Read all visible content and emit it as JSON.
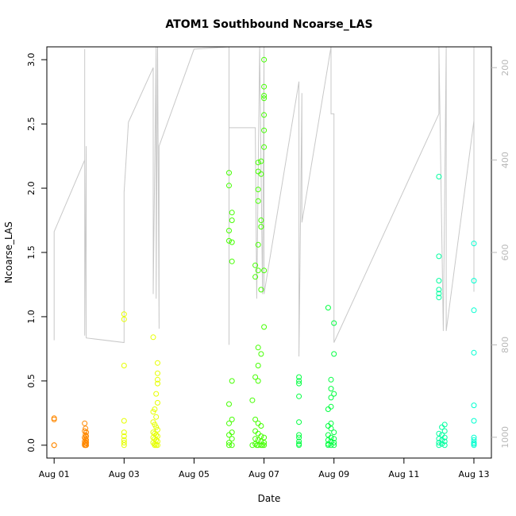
{
  "chart_data": {
    "type": "scatter",
    "title": "ATOM1 Southbound Ncoarse_LAS",
    "xlabel": "Date",
    "ylabel": "Ncoarse_LAS",
    "xlim": [
      "2016-07-31T19:00",
      "2016-08-13T12:00"
    ],
    "ylim": [
      -0.1,
      3.1
    ],
    "x_ticks": [
      "Aug 01",
      "Aug 03",
      "Aug 05",
      "Aug 07",
      "Aug 09",
      "Aug 11",
      "Aug 13"
    ],
    "x_tick_dates": [
      "2016-08-01T00:00",
      "2016-08-03T00:00",
      "2016-08-05T00:00",
      "2016-08-07T00:00",
      "2016-08-09T00:00",
      "2016-08-11T00:00",
      "2016-08-13T00:00"
    ],
    "y_ticks": [
      "0.0",
      "0.5",
      "1.0",
      "1.5",
      "2.0",
      "2.5",
      "3.0"
    ],
    "y_tick_values": [
      0,
      0.5,
      1.0,
      1.5,
      2.0,
      2.5,
      3.0
    ],
    "secondary_axis": {
      "label": "",
      "reversed": true,
      "ylim": [
        1045,
        155
      ],
      "ticks": [
        "200",
        "400",
        "600",
        "800",
        "1000"
      ],
      "tick_values": [
        200,
        400,
        600,
        800,
        1000
      ],
      "color": "#b8b8b8"
    },
    "grid": false,
    "legend": "none",
    "color_scale": [
      "#ff9a00",
      "#e3ff00",
      "#2eff00",
      "#00ffb4"
    ],
    "series": [
      {
        "color": "#ff8800",
        "points": [
          [
            "2016-08-01T00:00",
            0.21
          ],
          [
            "2016-08-01T00:00",
            0.2
          ],
          [
            "2016-08-01T00:00",
            0.0
          ],
          [
            "2016-08-01T00:00",
            0.0
          ],
          [
            "2016-08-01T21:00",
            0.17
          ],
          [
            "2016-08-01T21:30",
            0.13
          ],
          [
            "2016-08-01T21:00",
            0.11
          ],
          [
            "2016-08-01T22:00",
            0.1
          ],
          [
            "2016-08-01T21:30",
            0.08
          ],
          [
            "2016-08-01T22:00",
            0.07
          ],
          [
            "2016-08-01T21:00",
            0.06
          ],
          [
            "2016-08-01T21:30",
            0.05
          ],
          [
            "2016-08-01T22:00",
            0.04
          ],
          [
            "2016-08-01T21:00",
            0.03
          ],
          [
            "2016-08-01T21:30",
            0.02
          ],
          [
            "2016-08-01T22:00",
            0.02
          ],
          [
            "2016-08-01T21:00",
            0.01
          ],
          [
            "2016-08-01T21:30",
            0.0
          ],
          [
            "2016-08-01T22:00",
            0.0
          ],
          [
            "2016-08-01T21:00",
            0.0
          ]
        ]
      },
      {
        "color": "#e6ff00",
        "points": [
          [
            "2016-08-03T00:00",
            1.02
          ],
          [
            "2016-08-03T00:00",
            0.98
          ],
          [
            "2016-08-03T00:00",
            0.62
          ],
          [
            "2016-08-03T00:00",
            0.19
          ],
          [
            "2016-08-03T00:00",
            0.1
          ],
          [
            "2016-08-03T00:00",
            0.07
          ],
          [
            "2016-08-03T00:00",
            0.04
          ],
          [
            "2016-08-03T00:00",
            0.02
          ],
          [
            "2016-08-03T00:00",
            0.0
          ],
          [
            "2016-08-03T20:00",
            0.84
          ],
          [
            "2016-08-03T23:00",
            0.64
          ],
          [
            "2016-08-03T23:00",
            0.56
          ],
          [
            "2016-08-03T23:00",
            0.51
          ],
          [
            "2016-08-03T23:00",
            0.48
          ],
          [
            "2016-08-03T22:00",
            0.4
          ],
          [
            "2016-08-03T23:00",
            0.33
          ],
          [
            "2016-08-03T21:00",
            0.28
          ],
          [
            "2016-08-03T20:00",
            0.26
          ],
          [
            "2016-08-03T22:00",
            0.22
          ],
          [
            "2016-08-03T20:00",
            0.18
          ],
          [
            "2016-08-03T21:00",
            0.16
          ],
          [
            "2016-08-03T22:00",
            0.14
          ],
          [
            "2016-08-03T23:00",
            0.12
          ],
          [
            "2016-08-03T20:00",
            0.1
          ],
          [
            "2016-08-03T21:00",
            0.09
          ],
          [
            "2016-08-03T22:00",
            0.08
          ],
          [
            "2016-08-03T23:00",
            0.07
          ],
          [
            "2016-08-03T20:00",
            0.06
          ],
          [
            "2016-08-03T21:00",
            0.05
          ],
          [
            "2016-08-03T22:00",
            0.04
          ],
          [
            "2016-08-03T23:00",
            0.03
          ],
          [
            "2016-08-03T20:00",
            0.02
          ],
          [
            "2016-08-03T21:00",
            0.01
          ],
          [
            "2016-08-03T22:00",
            0.0
          ],
          [
            "2016-08-03T23:00",
            0.0
          ],
          [
            "2016-08-03T21:00",
            0.0
          ]
        ]
      },
      {
        "color": "#44ff00",
        "points": [
          [
            "2016-08-06T00:00",
            2.12
          ],
          [
            "2016-08-06T00:00",
            2.02
          ],
          [
            "2016-08-06T02:00",
            1.81
          ],
          [
            "2016-08-06T02:00",
            1.75
          ],
          [
            "2016-08-06T00:00",
            1.67
          ],
          [
            "2016-08-06T00:00",
            1.59
          ],
          [
            "2016-08-06T02:00",
            1.58
          ],
          [
            "2016-08-06T02:00",
            1.43
          ],
          [
            "2016-08-06T02:00",
            0.5
          ],
          [
            "2016-08-06T00:00",
            0.32
          ],
          [
            "2016-08-06T02:00",
            0.2
          ],
          [
            "2016-08-06T00:00",
            0.17
          ],
          [
            "2016-08-06T02:00",
            0.1
          ],
          [
            "2016-08-06T00:00",
            0.08
          ],
          [
            "2016-08-06T02:00",
            0.05
          ],
          [
            "2016-08-06T00:00",
            0.02
          ],
          [
            "2016-08-06T02:00",
            0.0
          ],
          [
            "2016-08-06T00:00",
            0.0
          ],
          [
            "2016-08-07T00:00",
            3.0
          ],
          [
            "2016-08-07T00:00",
            2.79
          ],
          [
            "2016-08-07T00:00",
            2.72
          ],
          [
            "2016-08-07T00:00",
            2.7
          ],
          [
            "2016-08-07T00:00",
            2.57
          ],
          [
            "2016-08-07T00:00",
            2.45
          ],
          [
            "2016-08-07T00:00",
            2.32
          ],
          [
            "2016-08-06T22:00",
            2.21
          ],
          [
            "2016-08-06T20:00",
            2.2
          ],
          [
            "2016-08-06T20:00",
            2.13
          ],
          [
            "2016-08-06T22:00",
            2.11
          ],
          [
            "2016-08-06T20:00",
            1.99
          ],
          [
            "2016-08-06T20:00",
            1.9
          ],
          [
            "2016-08-06T22:00",
            1.75
          ],
          [
            "2016-08-06T22:00",
            1.7
          ],
          [
            "2016-08-06T20:00",
            1.56
          ],
          [
            "2016-08-06T18:00",
            1.4
          ],
          [
            "2016-08-06T20:00",
            1.36
          ],
          [
            "2016-08-06T18:00",
            1.31
          ],
          [
            "2016-08-07T00:00",
            1.36
          ],
          [
            "2016-08-06T22:00",
            1.21
          ],
          [
            "2016-08-07T00:00",
            0.92
          ],
          [
            "2016-08-06T20:00",
            0.76
          ],
          [
            "2016-08-06T22:00",
            0.71
          ],
          [
            "2016-08-06T20:00",
            0.62
          ],
          [
            "2016-08-06T18:00",
            0.53
          ],
          [
            "2016-08-06T20:00",
            0.5
          ],
          [
            "2016-08-06T16:00",
            0.35
          ],
          [
            "2016-08-06T18:00",
            0.2
          ],
          [
            "2016-08-06T20:00",
            0.17
          ],
          [
            "2016-08-06T22:00",
            0.15
          ],
          [
            "2016-08-06T18:00",
            0.11
          ],
          [
            "2016-08-06T20:00",
            0.09
          ],
          [
            "2016-08-06T22:00",
            0.07
          ],
          [
            "2016-08-07T00:00",
            0.06
          ],
          [
            "2016-08-06T18:00",
            0.05
          ],
          [
            "2016-08-06T20:00",
            0.04
          ],
          [
            "2016-08-06T22:00",
            0.03
          ],
          [
            "2016-08-07T00:00",
            0.02
          ],
          [
            "2016-08-06T18:00",
            0.01
          ],
          [
            "2016-08-06T20:00",
            0.0
          ],
          [
            "2016-08-06T22:00",
            0.0
          ],
          [
            "2016-08-07T00:00",
            0.0
          ],
          [
            "2016-08-06T16:00",
            0.0
          ],
          [
            "2016-08-06T19:00",
            0.0
          ],
          [
            "2016-08-06T23:00",
            0.0
          ]
        ]
      },
      {
        "color": "#00ff40",
        "points": [
          [
            "2016-08-08T00:00",
            0.53
          ],
          [
            "2016-08-08T00:00",
            0.5
          ],
          [
            "2016-08-08T00:00",
            0.48
          ],
          [
            "2016-08-08T00:00",
            0.38
          ],
          [
            "2016-08-08T00:00",
            0.18
          ],
          [
            "2016-08-08T00:00",
            0.08
          ],
          [
            "2016-08-08T00:00",
            0.06
          ],
          [
            "2016-08-08T00:00",
            0.03
          ],
          [
            "2016-08-08T00:00",
            0.01
          ],
          [
            "2016-08-08T00:00",
            0.0
          ],
          [
            "2016-08-08T20:00",
            1.07
          ],
          [
            "2016-08-09T00:00",
            0.95
          ],
          [
            "2016-08-09T00:00",
            0.71
          ],
          [
            "2016-08-08T22:00",
            0.51
          ],
          [
            "2016-08-08T22:00",
            0.44
          ],
          [
            "2016-08-09T00:00",
            0.4
          ],
          [
            "2016-08-08T22:00",
            0.37
          ],
          [
            "2016-08-08T22:00",
            0.3
          ],
          [
            "2016-08-08T20:00",
            0.28
          ],
          [
            "2016-08-08T22:00",
            0.17
          ],
          [
            "2016-08-08T20:00",
            0.15
          ],
          [
            "2016-08-08T22:00",
            0.13
          ],
          [
            "2016-08-09T00:00",
            0.1
          ],
          [
            "2016-08-08T20:00",
            0.08
          ],
          [
            "2016-08-08T22:00",
            0.06
          ],
          [
            "2016-08-09T00:00",
            0.05
          ],
          [
            "2016-08-08T20:00",
            0.04
          ],
          [
            "2016-08-08T22:00",
            0.03
          ],
          [
            "2016-08-09T00:00",
            0.02
          ],
          [
            "2016-08-08T20:00",
            0.01
          ],
          [
            "2016-08-08T22:00",
            0.0
          ],
          [
            "2016-08-09T00:00",
            0.0
          ],
          [
            "2016-08-08T20:00",
            0.0
          ]
        ]
      },
      {
        "color": "#00ffa0",
        "points": [
          [
            "2016-08-12T00:00",
            2.09
          ],
          [
            "2016-08-12T00:00",
            1.47
          ],
          [
            "2016-08-12T00:00",
            1.28
          ],
          [
            "2016-08-12T00:00",
            1.21
          ],
          [
            "2016-08-12T00:00",
            1.18
          ],
          [
            "2016-08-12T00:00",
            1.15
          ],
          [
            "2016-08-12T04:00",
            0.16
          ],
          [
            "2016-08-12T02:00",
            0.14
          ],
          [
            "2016-08-12T04:00",
            0.11
          ],
          [
            "2016-08-12T00:00",
            0.09
          ],
          [
            "2016-08-12T02:00",
            0.08
          ],
          [
            "2016-08-12T04:00",
            0.06
          ],
          [
            "2016-08-12T00:00",
            0.05
          ],
          [
            "2016-08-12T02:00",
            0.04
          ],
          [
            "2016-08-12T04:00",
            0.03
          ],
          [
            "2016-08-12T00:00",
            0.02
          ],
          [
            "2016-08-12T02:00",
            0.01
          ],
          [
            "2016-08-12T04:00",
            0.0
          ],
          [
            "2016-08-12T00:00",
            0.0
          ]
        ]
      },
      {
        "color": "#00ffd0",
        "points": [
          [
            "2016-08-13T00:00",
            1.57
          ],
          [
            "2016-08-13T00:00",
            1.28
          ],
          [
            "2016-08-13T00:00",
            1.05
          ],
          [
            "2016-08-13T00:00",
            0.72
          ],
          [
            "2016-08-13T00:00",
            0.31
          ],
          [
            "2016-08-13T00:00",
            0.19
          ],
          [
            "2016-08-13T00:00",
            0.06
          ],
          [
            "2016-08-13T00:00",
            0.04
          ],
          [
            "2016-08-13T00:00",
            0.02
          ],
          [
            "2016-08-13T00:00",
            0.01
          ],
          [
            "2016-08-13T00:00",
            0.0
          ]
        ]
      }
    ],
    "secondary_series": {
      "name": "",
      "color": "#c8c8c8",
      "points": [
        [
          "2016-08-01T00:00",
          790
        ],
        [
          "2016-08-01T00:00",
          555
        ],
        [
          "2016-08-01T21:00",
          400
        ],
        [
          "2016-08-01T21:00",
          160
        ],
        [
          "2016-08-01T21:00",
          780
        ],
        [
          "2016-08-01T22:00",
          370
        ],
        [
          "2016-08-01T22:00",
          785
        ],
        [
          "2016-08-03T00:00",
          795
        ],
        [
          "2016-08-03T00:00",
          470
        ],
        [
          "2016-08-03T03:00",
          318
        ],
        [
          "2016-08-03T20:00",
          200
        ],
        [
          "2016-08-03T20:00",
          690
        ],
        [
          "2016-08-03T22:00",
          155
        ],
        [
          "2016-08-03T22:00",
          700
        ],
        [
          "2016-08-03T23:00",
          155
        ],
        [
          "2016-08-04T00:00",
          765
        ],
        [
          "2016-08-04T00:00",
          370
        ],
        [
          "2016-08-05T00:00",
          160
        ],
        [
          "2016-08-06T00:00",
          155
        ],
        [
          "2016-08-06T00:00",
          800
        ],
        [
          "2016-08-06T00:00",
          330
        ],
        [
          "2016-08-06T18:00",
          330
        ],
        [
          "2016-08-06T19:00",
          700
        ],
        [
          "2016-08-06T21:00",
          155
        ],
        [
          "2016-08-06T23:00",
          690
        ],
        [
          "2016-08-07T00:00",
          155
        ],
        [
          "2016-08-07T00:00",
          690
        ],
        [
          "2016-08-08T00:00",
          230
        ],
        [
          "2016-08-08T00:00",
          825
        ],
        [
          "2016-08-08T02:00",
          255
        ],
        [
          "2016-08-08T02:00",
          535
        ],
        [
          "2016-08-08T22:00",
          155
        ],
        [
          "2016-08-08T22:00",
          300
        ],
        [
          "2016-08-09T00:00",
          300
        ],
        [
          "2016-08-09T00:00",
          795
        ],
        [
          "2016-08-12T00:00",
          300
        ],
        [
          "2016-08-12T00:00",
          155
        ],
        [
          "2016-08-12T03:00",
          770
        ],
        [
          "2016-08-12T05:00",
          155
        ],
        [
          "2016-08-12T05:00",
          770
        ],
        [
          "2016-08-13T00:00",
          315
        ],
        [
          "2016-08-13T00:00",
          155
        ],
        [
          "2016-08-13T00:00",
          685
        ]
      ]
    }
  }
}
